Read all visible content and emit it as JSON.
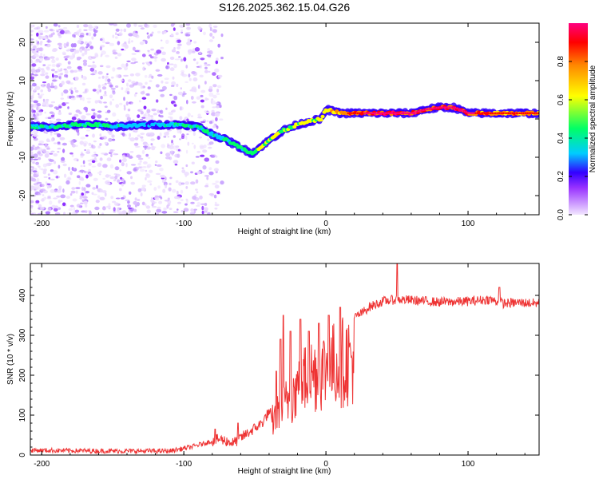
{
  "title": "S126.2025.362.15.04.G26",
  "chart_data": [
    {
      "type": "heatmap",
      "title": "S126.2025.362.15.04.G26",
      "xlabel": "Height of straight line (km)",
      "ylabel": "Frequency (Hz)",
      "xlim": [
        -208,
        150
      ],
      "ylim": [
        -25,
        25
      ],
      "xticks": [
        -200,
        -100,
        0,
        100
      ],
      "xtick_labels": [
        "-200",
        "-100",
        "0",
        "100"
      ],
      "yticks": [
        -20,
        -10,
        0,
        10,
        20
      ],
      "ytick_labels": [
        "-20",
        "-10",
        "0",
        "10",
        "20"
      ],
      "colorbar": {
        "label": "Normalized spectral amplitude",
        "range": [
          0,
          1
        ],
        "ticks": [
          0.0,
          0.2,
          0.4,
          0.6,
          0.8
        ],
        "tick_labels": [
          "0.0",
          "0.2",
          "0.4",
          "0.6",
          "0.8"
        ],
        "colors": [
          "#f2e6ff",
          "#9933ff",
          "#3300ff",
          "#00ccff",
          "#00ff66",
          "#ffff00",
          "#ff8800",
          "#ff0000",
          "#ff0080"
        ]
      },
      "ridge": {
        "x": [
          -208,
          -190,
          -175,
          -160,
          -150,
          -120,
          -110,
          -100,
          -90,
          -80,
          -70,
          -60,
          -52,
          -45,
          -38,
          -30,
          -20,
          -10,
          -3,
          0,
          10,
          20,
          40,
          60,
          70,
          80,
          90,
          100,
          110,
          120,
          130,
          150
        ],
        "freq_hz": [
          -2,
          -2,
          -1.5,
          -1.5,
          -2,
          -1.5,
          -1.5,
          -1.5,
          -2,
          -4,
          -5.5,
          -7.5,
          -9,
          -7,
          -5,
          -3,
          -1.5,
          -0.5,
          0,
          2.5,
          1.5,
          1.5,
          1.5,
          1.5,
          2.5,
          3,
          3,
          1.5,
          1.5,
          1.5,
          1.5,
          1.5
        ],
        "amplitude": [
          0.3,
          0.35,
          0.4,
          0.35,
          0.3,
          0.25,
          0.3,
          0.35,
          0.35,
          0.3,
          0.35,
          0.35,
          0.4,
          0.45,
          0.45,
          0.45,
          0.5,
          0.5,
          0.55,
          0.6,
          0.65,
          0.75,
          0.85,
          0.85,
          0.8,
          0.85,
          0.85,
          0.8,
          0.75,
          0.75,
          0.7,
          0.7
        ]
      }
    },
    {
      "type": "line",
      "xlabel": "Height of straight line (km)",
      "ylabel": "SNR (10 * v/v)",
      "xlim": [
        -208,
        150
      ],
      "ylim": [
        0,
        480
      ],
      "xticks": [
        -200,
        -100,
        0,
        100
      ],
      "xtick_labels": [
        "-200",
        "-100",
        "0",
        "100"
      ],
      "yticks": [
        0,
        100,
        200,
        300,
        400
      ],
      "ytick_labels": [
        "0",
        "100",
        "200",
        "300",
        "400"
      ],
      "color": "#ee3333",
      "envelope": {
        "x": [
          -208,
          -150,
          -110,
          -95,
          -85,
          -75,
          -65,
          -55,
          -45,
          -38,
          -30,
          -25,
          -20,
          -15,
          -10,
          -5,
          0,
          5,
          10,
          15,
          20,
          25,
          30,
          40,
          50,
          60,
          80,
          100,
          115,
          125,
          135,
          150
        ],
        "snr": [
          12,
          10,
          10,
          20,
          30,
          40,
          30,
          55,
          80,
          120,
          170,
          210,
          240,
          270,
          290,
          300,
          310,
          320,
          330,
          340,
          345,
          355,
          370,
          385,
          390,
          388,
          383,
          385,
          390,
          380,
          382,
          380
        ]
      },
      "spikes": [
        {
          "x": -78,
          "snr": 65
        },
        {
          "x": -62,
          "snr": 80
        },
        {
          "x": -35,
          "snr": 210
        },
        {
          "x": -32,
          "snr": 290
        },
        {
          "x": -30,
          "snr": 350
        },
        {
          "x": -25,
          "snr": 310
        },
        {
          "x": -18,
          "snr": 340
        },
        {
          "x": -12,
          "snr": 310
        },
        {
          "x": -5,
          "snr": 330
        },
        {
          "x": 2,
          "snr": 350
        },
        {
          "x": 10,
          "snr": 370
        },
        {
          "x": 50,
          "snr": 485
        },
        {
          "x": 122,
          "snr": 420
        }
      ]
    }
  ]
}
